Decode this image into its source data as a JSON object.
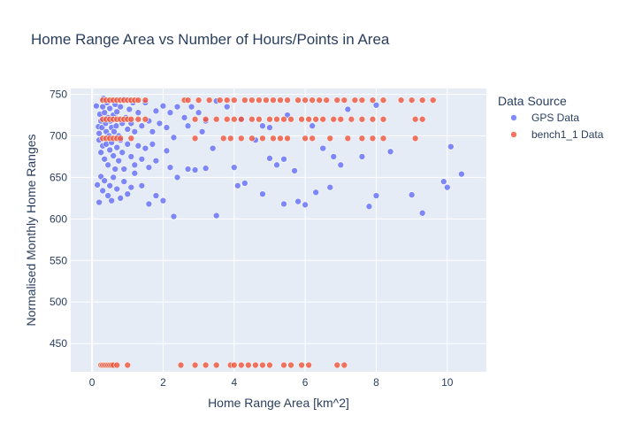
{
  "chart_data": {
    "type": "scatter",
    "title": "Home Range Area vs Number of Hours/Points in Area",
    "xlabel": "Home Range Area [km^2]",
    "ylabel": "Normalised Monthly Home Ranges",
    "xlim": [
      -0.6,
      11.1
    ],
    "ylim": [
      416,
      757
    ],
    "x_ticks": [
      0,
      2,
      4,
      6,
      8,
      10
    ],
    "y_ticks": [
      450,
      500,
      550,
      600,
      650,
      700,
      750
    ],
    "grid": true,
    "legend": {
      "title": "Data Source",
      "placement": "right"
    },
    "series": [
      {
        "name": "GPS Data",
        "color": "#636efa",
        "points": [
          [
            0.12,
            736
          ],
          [
            0.18,
            711
          ],
          [
            0.2,
            703
          ],
          [
            0.22,
            726
          ],
          [
            0.25,
            718
          ],
          [
            0.28,
            710
          ],
          [
            0.3,
            735
          ],
          [
            0.32,
            745
          ],
          [
            0.35,
            728
          ],
          [
            0.38,
            715
          ],
          [
            0.4,
            705
          ],
          [
            0.42,
            740
          ],
          [
            0.45,
            722
          ],
          [
            0.48,
            700
          ],
          [
            0.5,
            733
          ],
          [
            0.52,
            718
          ],
          [
            0.55,
            710
          ],
          [
            0.58,
            742
          ],
          [
            0.6,
            725
          ],
          [
            0.62,
            705
          ],
          [
            0.65,
            738
          ],
          [
            0.68,
            712
          ],
          [
            0.7,
            729
          ],
          [
            0.75,
            700
          ],
          [
            0.8,
            735
          ],
          [
            0.85,
            715
          ],
          [
            0.9,
            744
          ],
          [
            0.95,
            722
          ],
          [
            1.0,
            708
          ],
          [
            1.05,
            732
          ],
          [
            1.1,
            715
          ],
          [
            1.15,
            740
          ],
          [
            1.2,
            705
          ],
          [
            1.3,
            728
          ],
          [
            1.4,
            712
          ],
          [
            1.5,
            740
          ],
          [
            1.6,
            718
          ],
          [
            1.7,
            705
          ],
          [
            1.8,
            730
          ],
          [
            1.9,
            715
          ],
          [
            2.0,
            736
          ],
          [
            2.1,
            710
          ],
          [
            2.2,
            728
          ],
          [
            2.4,
            735
          ],
          [
            2.6,
            722
          ],
          [
            2.7,
            712
          ],
          [
            2.8,
            735
          ],
          [
            3.0,
            728
          ],
          [
            3.1,
            705
          ],
          [
            3.2,
            718
          ],
          [
            3.5,
            742
          ],
          [
            3.8,
            735
          ],
          [
            4.2,
            720
          ],
          [
            4.8,
            712
          ],
          [
            5.0,
            710
          ],
          [
            5.5,
            725
          ],
          [
            6.2,
            712
          ],
          [
            7.2,
            732
          ],
          [
            8.0,
            737
          ],
          [
            0.2,
            695
          ],
          [
            0.25,
            680
          ],
          [
            0.3,
            688
          ],
          [
            0.35,
            672
          ],
          [
            0.4,
            690
          ],
          [
            0.45,
            665
          ],
          [
            0.5,
            683
          ],
          [
            0.55,
            692
          ],
          [
            0.6,
            676
          ],
          [
            0.65,
            660
          ],
          [
            0.7,
            686
          ],
          [
            0.75,
            670
          ],
          [
            0.8,
            695
          ],
          [
            0.85,
            680
          ],
          [
            0.9,
            660
          ],
          [
            1.0,
            690
          ],
          [
            1.1,
            675
          ],
          [
            1.2,
            665
          ],
          [
            1.3,
            688
          ],
          [
            1.4,
            672
          ],
          [
            1.5,
            685
          ],
          [
            1.6,
            662
          ],
          [
            1.7,
            690
          ],
          [
            1.8,
            670
          ],
          [
            2.1,
            682
          ],
          [
            2.2,
            662
          ],
          [
            2.3,
            698
          ],
          [
            2.7,
            660
          ],
          [
            2.9,
            659
          ],
          [
            3.2,
            661
          ],
          [
            3.4,
            685
          ],
          [
            4.0,
            662
          ],
          [
            4.6,
            695
          ],
          [
            5.0,
            673
          ],
          [
            5.2,
            665
          ],
          [
            5.4,
            672
          ],
          [
            5.7,
            658
          ],
          [
            6.5,
            685
          ],
          [
            6.8,
            675
          ],
          [
            7.0,
            665
          ],
          [
            7.6,
            675
          ],
          [
            8.4,
            681
          ],
          [
            10.1,
            687
          ],
          [
            0.15,
            641
          ],
          [
            0.2,
            620
          ],
          [
            0.25,
            651
          ],
          [
            0.3,
            634
          ],
          [
            0.35,
            646
          ],
          [
            0.45,
            628
          ],
          [
            0.5,
            640
          ],
          [
            0.55,
            622
          ],
          [
            0.6,
            650
          ],
          [
            0.7,
            636
          ],
          [
            0.8,
            625
          ],
          [
            0.9,
            645
          ],
          [
            1.0,
            630
          ],
          [
            1.1,
            638
          ],
          [
            1.2,
            655
          ],
          [
            1.4,
            640
          ],
          [
            1.6,
            618
          ],
          [
            1.8,
            628
          ],
          [
            2.0,
            622
          ],
          [
            2.3,
            603
          ],
          [
            2.4,
            650
          ],
          [
            3.5,
            604
          ],
          [
            4.1,
            640
          ],
          [
            4.3,
            643
          ],
          [
            4.8,
            630
          ],
          [
            5.4,
            618
          ],
          [
            5.8,
            621
          ],
          [
            6.0,
            617
          ],
          [
            6.3,
            632
          ],
          [
            6.7,
            638
          ],
          [
            7.8,
            615
          ],
          [
            8.0,
            628
          ],
          [
            9.0,
            629
          ],
          [
            9.3,
            607
          ],
          [
            9.9,
            645
          ],
          [
            10.0,
            638
          ],
          [
            10.4,
            654
          ]
        ]
      },
      {
        "name": "bench1_1 Data",
        "color": "#ef553b",
        "points": [
          [
            0.3,
            743
          ],
          [
            0.4,
            743
          ],
          [
            0.5,
            743
          ],
          [
            0.6,
            743
          ],
          [
            0.7,
            743
          ],
          [
            0.8,
            743
          ],
          [
            0.9,
            743
          ],
          [
            1.0,
            743
          ],
          [
            1.1,
            743
          ],
          [
            1.2,
            743
          ],
          [
            1.3,
            743
          ],
          [
            1.5,
            743
          ],
          [
            2.6,
            743
          ],
          [
            2.7,
            743
          ],
          [
            3.0,
            743
          ],
          [
            3.3,
            743
          ],
          [
            3.6,
            743
          ],
          [
            3.8,
            743
          ],
          [
            4.0,
            743
          ],
          [
            4.3,
            743
          ],
          [
            4.5,
            743
          ],
          [
            4.7,
            743
          ],
          [
            4.9,
            743
          ],
          [
            5.1,
            743
          ],
          [
            5.3,
            743
          ],
          [
            5.5,
            743
          ],
          [
            5.8,
            743
          ],
          [
            6.0,
            743
          ],
          [
            6.2,
            743
          ],
          [
            6.4,
            743
          ],
          [
            6.6,
            743
          ],
          [
            6.9,
            743
          ],
          [
            7.1,
            743
          ],
          [
            7.4,
            743
          ],
          [
            7.6,
            743
          ],
          [
            7.9,
            743
          ],
          [
            8.2,
            743
          ],
          [
            8.7,
            743
          ],
          [
            9.0,
            743
          ],
          [
            9.3,
            743
          ],
          [
            9.6,
            743
          ],
          [
            0.3,
            720
          ],
          [
            0.4,
            720
          ],
          [
            0.5,
            720
          ],
          [
            0.6,
            720
          ],
          [
            0.7,
            720
          ],
          [
            0.8,
            720
          ],
          [
            0.9,
            720
          ],
          [
            1.0,
            720
          ],
          [
            1.1,
            720
          ],
          [
            1.3,
            720
          ],
          [
            1.5,
            720
          ],
          [
            2.9,
            720
          ],
          [
            3.2,
            720
          ],
          [
            3.5,
            720
          ],
          [
            3.8,
            720
          ],
          [
            4.0,
            720
          ],
          [
            4.2,
            720
          ],
          [
            4.5,
            720
          ],
          [
            4.7,
            720
          ],
          [
            5.0,
            720
          ],
          [
            5.2,
            720
          ],
          [
            5.4,
            720
          ],
          [
            5.6,
            720
          ],
          [
            5.9,
            720
          ],
          [
            6.1,
            720
          ],
          [
            6.3,
            720
          ],
          [
            6.5,
            720
          ],
          [
            6.8,
            720
          ],
          [
            7.0,
            720
          ],
          [
            7.3,
            720
          ],
          [
            7.6,
            720
          ],
          [
            7.9,
            720
          ],
          [
            8.2,
            720
          ],
          [
            9.1,
            720
          ],
          [
            9.3,
            720
          ],
          [
            0.3,
            697
          ],
          [
            0.4,
            697
          ],
          [
            0.5,
            697
          ],
          [
            0.6,
            697
          ],
          [
            0.7,
            697
          ],
          [
            0.8,
            697
          ],
          [
            1.1,
            697
          ],
          [
            2.9,
            697
          ],
          [
            3.7,
            697
          ],
          [
            3.9,
            697
          ],
          [
            4.2,
            697
          ],
          [
            4.5,
            697
          ],
          [
            4.8,
            697
          ],
          [
            5.1,
            697
          ],
          [
            5.3,
            697
          ],
          [
            5.5,
            697
          ],
          [
            6.0,
            697
          ],
          [
            6.2,
            697
          ],
          [
            6.7,
            697
          ],
          [
            7.2,
            697
          ],
          [
            7.6,
            697
          ],
          [
            7.9,
            697
          ],
          [
            8.2,
            697
          ],
          [
            9.1,
            697
          ],
          [
            0.25,
            424
          ],
          [
            0.3,
            424
          ],
          [
            0.35,
            424
          ],
          [
            0.4,
            424
          ],
          [
            0.45,
            424
          ],
          [
            0.5,
            424
          ],
          [
            0.55,
            424
          ],
          [
            0.6,
            424
          ],
          [
            0.7,
            424
          ],
          [
            1.0,
            424
          ],
          [
            2.5,
            424
          ],
          [
            2.9,
            424
          ],
          [
            3.2,
            424
          ],
          [
            3.5,
            424
          ],
          [
            3.9,
            424
          ],
          [
            4.0,
            424
          ],
          [
            4.2,
            424
          ],
          [
            4.4,
            424
          ],
          [
            4.6,
            424
          ],
          [
            4.8,
            424
          ],
          [
            5.0,
            424
          ],
          [
            5.4,
            424
          ],
          [
            5.6,
            424
          ],
          [
            5.9,
            424
          ],
          [
            6.1,
            424
          ],
          [
            6.9,
            424
          ],
          [
            7.1,
            424
          ]
        ]
      }
    ]
  }
}
